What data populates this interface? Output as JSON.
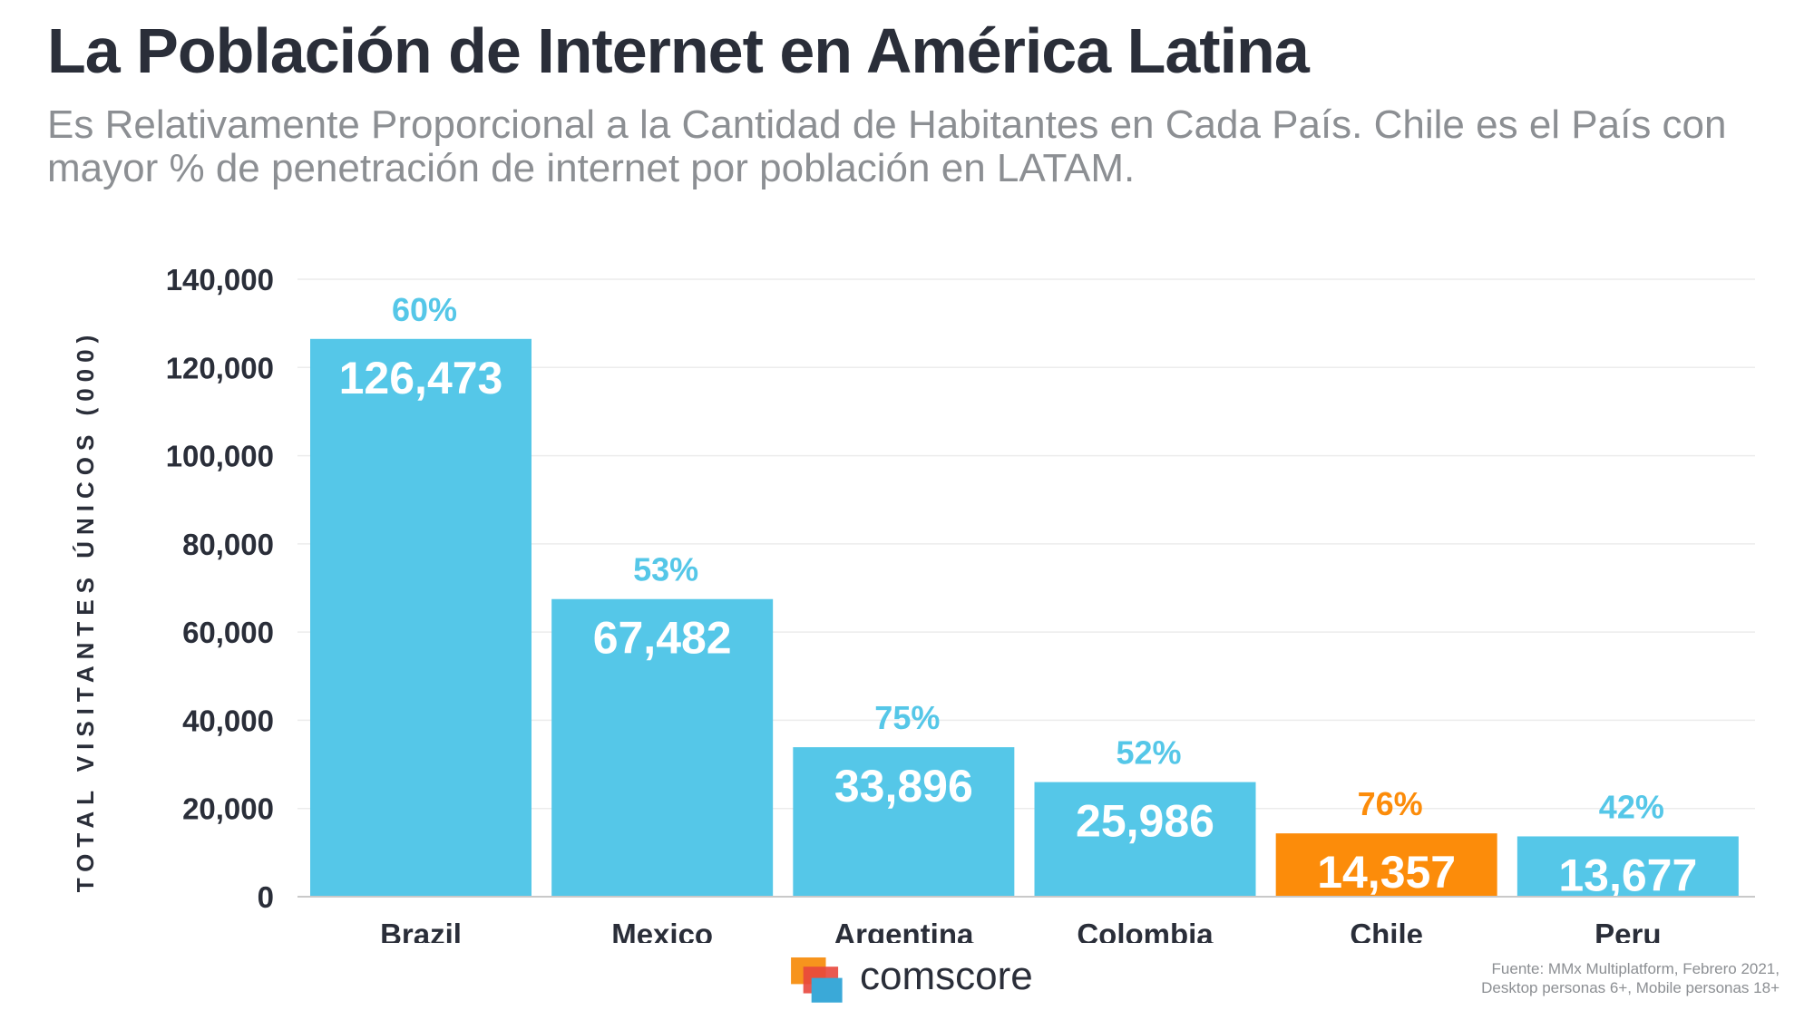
{
  "title": "La Población de Internet en América Latina",
  "subtitle": "Es Relativamente Proporcional a la Cantidad de Habitantes en Cada País. Chile es el País con mayor % de penetración de internet por población en LATAM.",
  "brand": {
    "logo_text": "comscore",
    "logo_colors": [
      "#f7941d",
      "#e8473d",
      "#3aa9d8"
    ]
  },
  "source": {
    "line1": "Fuente: MMx Multiplatform, Febrero 2021,",
    "line2": "Desktop personas 6+, Mobile personas 18+"
  },
  "colors": {
    "primary": "#55c7e8",
    "highlight": "#fc8c0a",
    "text": "#2a2e39",
    "muted": "#8c8f93"
  },
  "chart_data": {
    "type": "bar",
    "ylabel": "TOTAL VISITANTES ÚNICOS (000)",
    "xlabel": "",
    "ylim": [
      0,
      140000
    ],
    "yticks": [
      "0",
      "20,000",
      "40,000",
      "60,000",
      "80,000",
      "100,000",
      "120,000",
      "140,000"
    ],
    "ytick_values": [
      0,
      20000,
      40000,
      60000,
      80000,
      100000,
      120000,
      140000
    ],
    "grid": true,
    "categories": [
      "Brazil",
      "Mexico",
      "Argentina",
      "Colombia",
      "Chile",
      "Peru"
    ],
    "values": [
      126473,
      67482,
      33896,
      25986,
      14357,
      13677
    ],
    "value_labels": [
      "126,473",
      "67,482",
      "33,896",
      "25,986",
      "14,357",
      "13,677"
    ],
    "penetration_labels": [
      "60%",
      "53%",
      "75%",
      "52%",
      "76%",
      "42%"
    ],
    "highlight_category": "Chile"
  }
}
